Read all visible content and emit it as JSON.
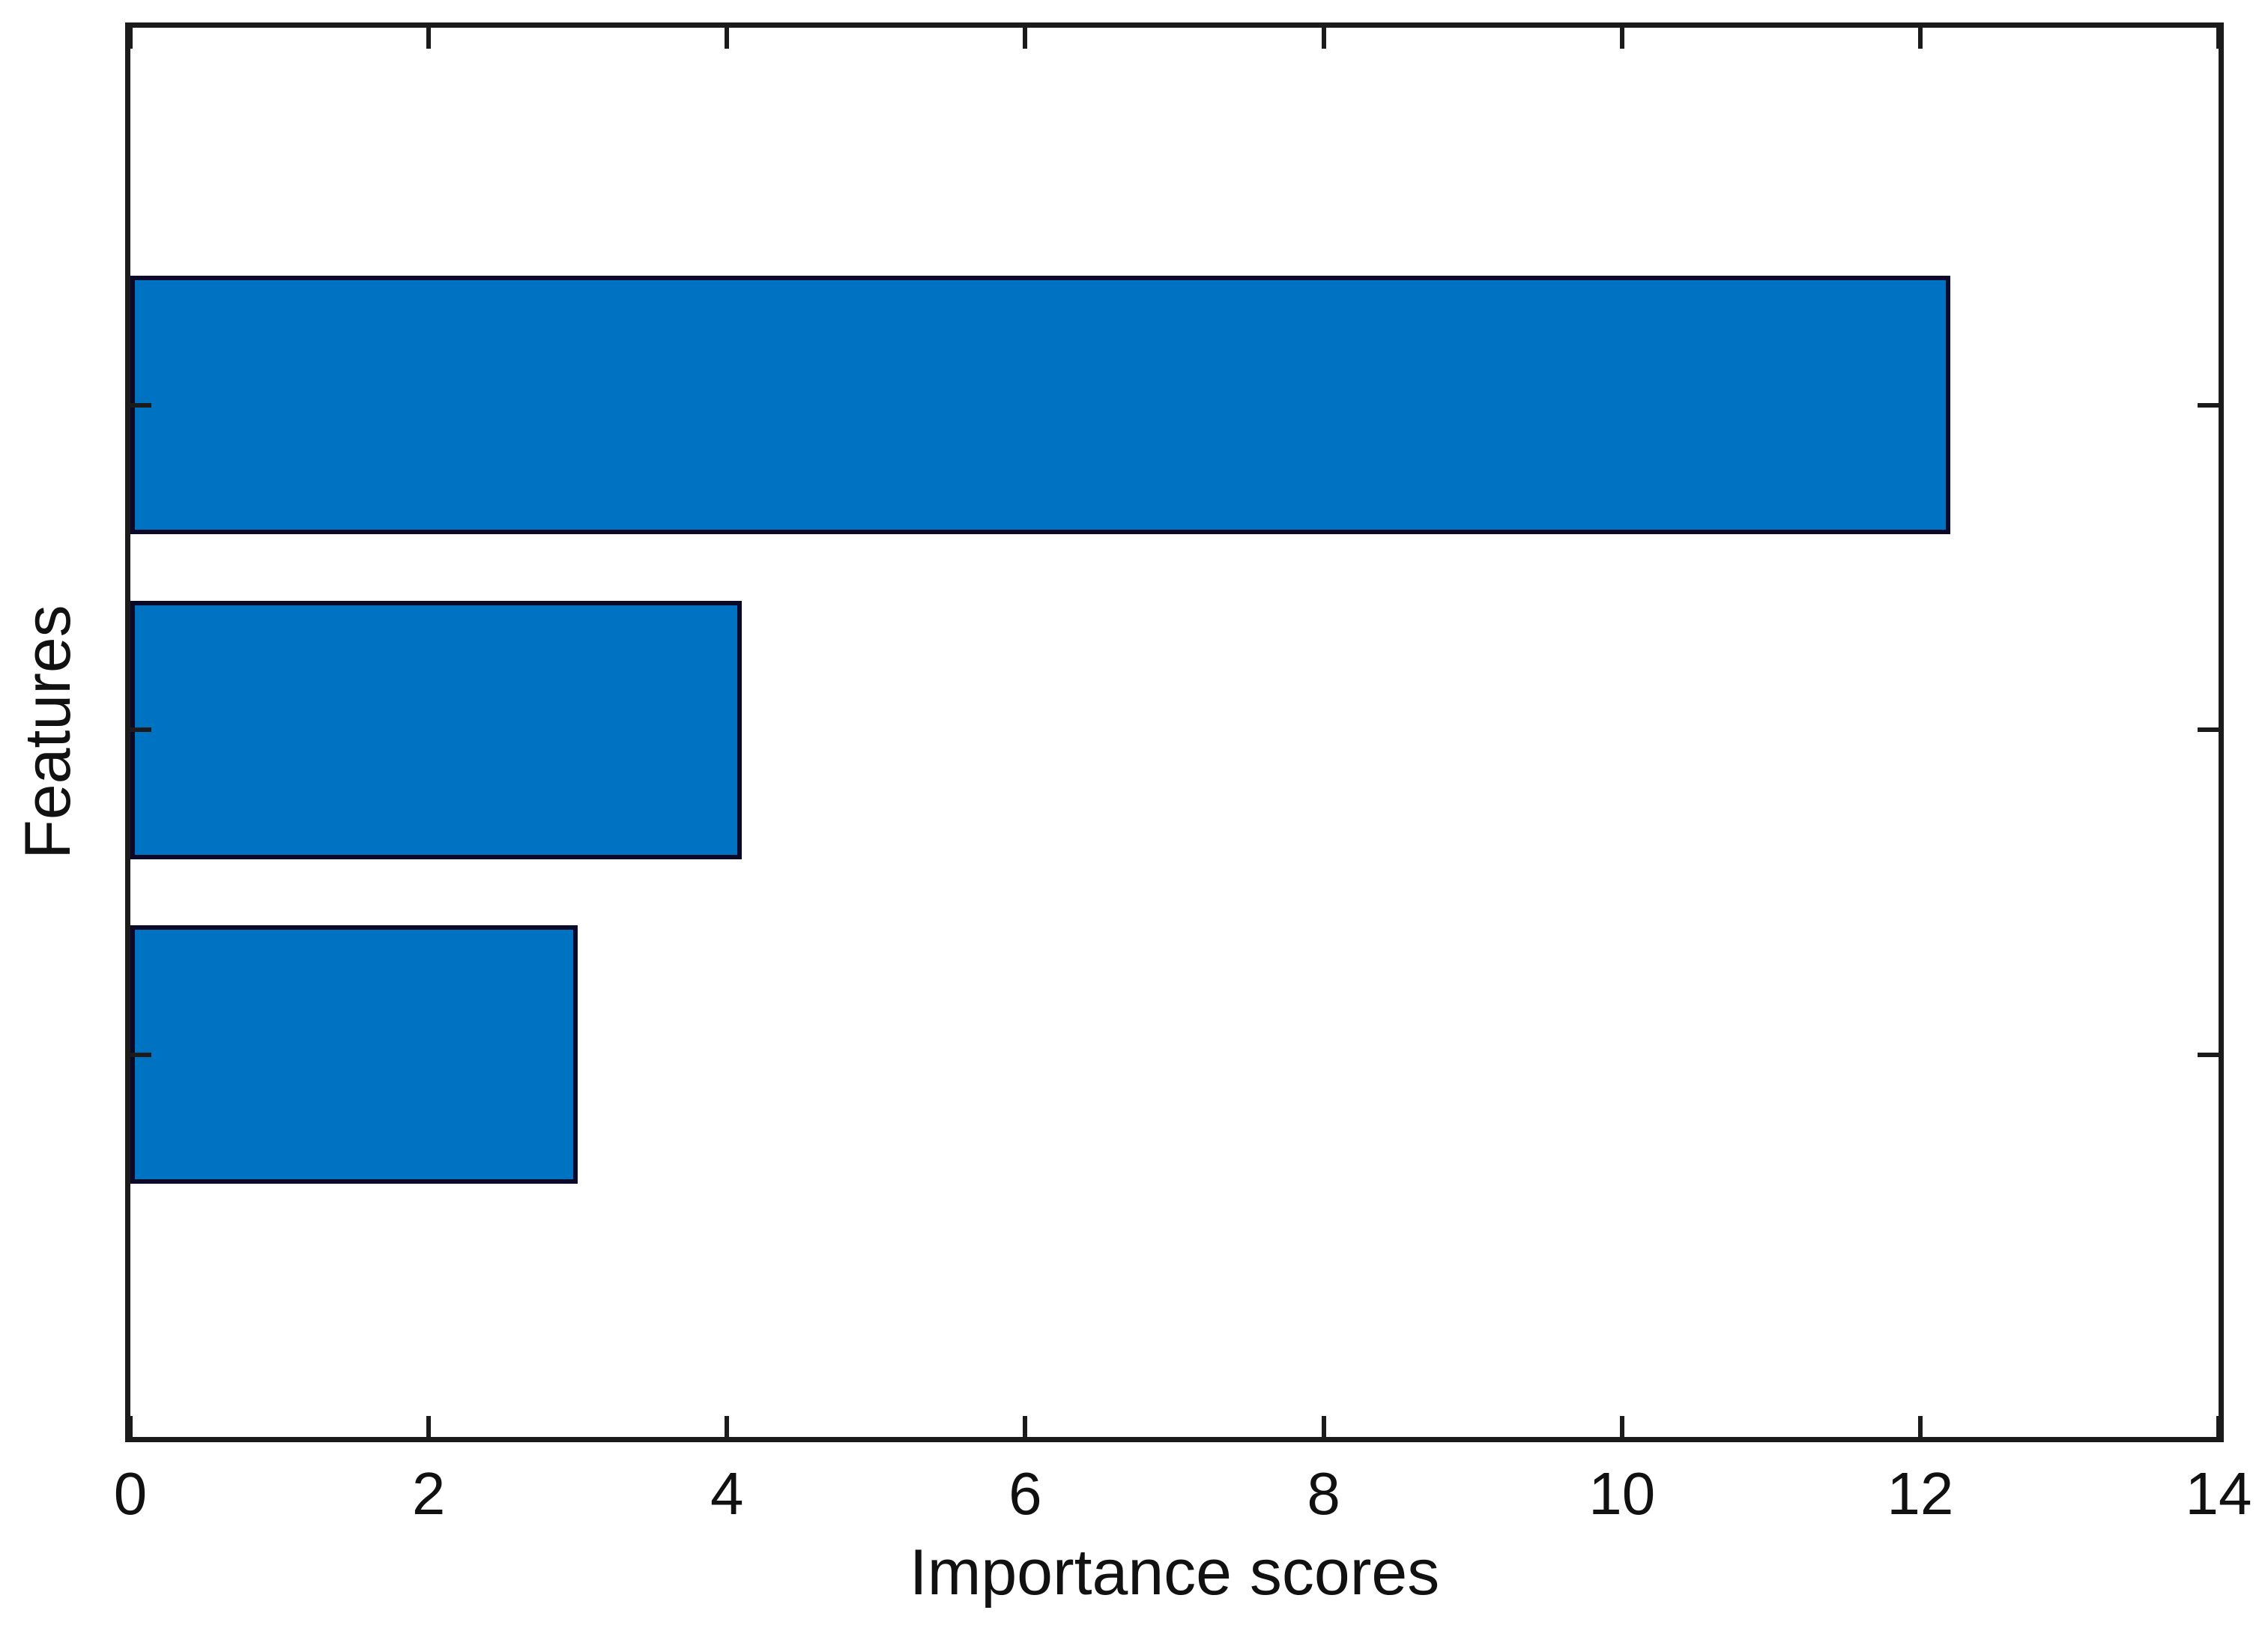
{
  "figure": {
    "background_color": "#ffffff",
    "axis_color": "#1b1b1b",
    "text_color": "#111111"
  },
  "chart_data": {
    "type": "bar",
    "orientation": "horizontal",
    "title": "",
    "xlabel": "Importance scores",
    "ylabel": "Features",
    "categories": [
      "",
      "",
      ""
    ],
    "values": [
      12.2,
      4.1,
      3.0
    ],
    "xlim": [
      0,
      14
    ],
    "xticks": [
      0,
      2,
      4,
      6,
      8,
      10,
      12,
      14
    ],
    "ytick_labels_visible": false,
    "grid": false,
    "legend_visible": false,
    "bar_color": "#0072C2",
    "bar_edge_color": "#0a0a28",
    "tick_direction": "in",
    "box": true
  }
}
